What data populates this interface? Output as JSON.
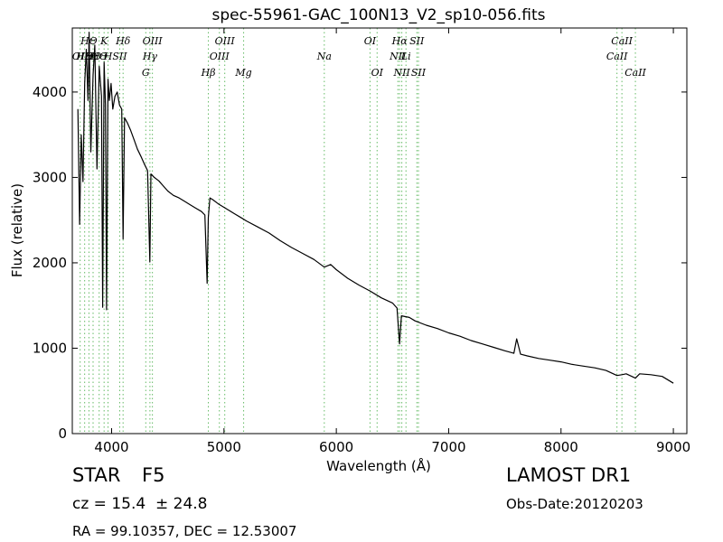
{
  "chart_data": {
    "type": "line",
    "title": "spec-55961-GAC_100N13_V2_sp10-056.fits",
    "xlabel": "Wavelength (Å)",
    "ylabel": "Flux (relative)",
    "xlim": [
      3650,
      9120
    ],
    "ylim": [
      0,
      4750
    ],
    "xticks": [
      4000,
      5000,
      6000,
      7000,
      8000,
      9000
    ],
    "yticks": [
      0,
      1000,
      2000,
      3000,
      4000
    ],
    "grid": false,
    "series": [
      {
        "color": "#000000",
        "x": [
          3700,
          3715,
          3730,
          3745,
          3760,
          3775,
          3790,
          3800,
          3815,
          3835,
          3850,
          3870,
          3890,
          3910,
          3920,
          3933,
          3945,
          3955,
          3968,
          3980,
          3995,
          4010,
          4030,
          4050,
          4070,
          4090,
          4102,
          4115,
          4140,
          4170,
          4200,
          4230,
          4260,
          4290,
          4320,
          4340,
          4350,
          4380,
          4420,
          4460,
          4500,
          4550,
          4600,
          4650,
          4700,
          4750,
          4800,
          4830,
          4850,
          4861,
          4875,
          4900,
          4950,
          5000,
          5050,
          5100,
          5150,
          5200,
          5300,
          5400,
          5500,
          5600,
          5700,
          5800,
          5893,
          5950,
          6000,
          6100,
          6200,
          6300,
          6400,
          6500,
          6540,
          6563,
          6580,
          6650,
          6700,
          6800,
          6900,
          7000,
          7100,
          7200,
          7300,
          7400,
          7500,
          7580,
          7605,
          7640,
          7700,
          7800,
          7900,
          8000,
          8100,
          8200,
          8300,
          8400,
          8498,
          8542,
          8580,
          8662,
          8700,
          8800,
          8900,
          9000
        ],
        "y": [
          3800,
          2450,
          3500,
          2950,
          4100,
          4500,
          3900,
          4700,
          3300,
          4200,
          4550,
          3100,
          4300,
          3950,
          1480,
          4350,
          3850,
          1450,
          4150,
          3900,
          4100,
          3800,
          3950,
          4000,
          3850,
          3800,
          2280,
          3700,
          3640,
          3550,
          3440,
          3330,
          3250,
          3160,
          3080,
          2010,
          3040,
          3000,
          2960,
          2900,
          2840,
          2790,
          2760,
          2720,
          2680,
          2640,
          2600,
          2560,
          1760,
          2530,
          2760,
          2740,
          2690,
          2650,
          2610,
          2570,
          2530,
          2490,
          2420,
          2350,
          2260,
          2180,
          2110,
          2040,
          1950,
          1980,
          1920,
          1820,
          1740,
          1670,
          1590,
          1530,
          1470,
          1050,
          1380,
          1360,
          1320,
          1270,
          1230,
          1180,
          1140,
          1090,
          1050,
          1010,
          970,
          940,
          1110,
          930,
          910,
          880,
          860,
          840,
          810,
          790,
          770,
          740,
          680,
          690,
          700,
          650,
          700,
          690,
          670,
          590
        ]
      }
    ],
    "line_labels": [
      {
        "x": 3720,
        "row": 1,
        "text": "OII"
      },
      {
        "x": 3760,
        "row": 1,
        "text": "HΘ"
      },
      {
        "x": 3798,
        "row": 0,
        "text": "HΘ"
      },
      {
        "x": 3835,
        "row": 1,
        "text": "HΘ"
      },
      {
        "x": 3889,
        "row": 1,
        "text": "HΘ"
      },
      {
        "x": 3933,
        "row": 0,
        "text": "K"
      },
      {
        "x": 3968,
        "row": 1,
        "text": "H"
      },
      {
        "x": 4072,
        "row": 1,
        "text": "SII"
      },
      {
        "x": 4102,
        "row": 0,
        "text": "Hδ"
      },
      {
        "x": 4304,
        "row": 2,
        "text": "G"
      },
      {
        "x": 4341,
        "row": 1,
        "text": "Hγ"
      },
      {
        "x": 4363,
        "row": 0,
        "text": "OIII"
      },
      {
        "x": 4861,
        "row": 2,
        "text": "Hβ"
      },
      {
        "x": 4959,
        "row": 1,
        "text": "OIII"
      },
      {
        "x": 5007,
        "row": 0,
        "text": "OIII"
      },
      {
        "x": 5175,
        "row": 2,
        "text": "Mg"
      },
      {
        "x": 5893,
        "row": 1,
        "text": "Na"
      },
      {
        "x": 6300,
        "row": 0,
        "text": "OI"
      },
      {
        "x": 6363,
        "row": 2,
        "text": "OI"
      },
      {
        "x": 6548,
        "row": 1,
        "text": "NII"
      },
      {
        "x": 6563,
        "row": 0,
        "text": "Hα"
      },
      {
        "x": 6583,
        "row": 2,
        "text": "NII"
      },
      {
        "x": 6620,
        "row": 1,
        "text": "Li"
      },
      {
        "x": 6717,
        "row": 0,
        "text": "SII"
      },
      {
        "x": 6731,
        "row": 2,
        "text": "SII"
      },
      {
        "x": 8498,
        "row": 1,
        "text": "CaII"
      },
      {
        "x": 8542,
        "row": 0,
        "text": "CaII"
      },
      {
        "x": 8662,
        "row": 2,
        "text": "CaII"
      }
    ]
  },
  "info": {
    "object_class": "STAR",
    "subclass": "F5",
    "redshift": "cz = 15.4  ± 24.8",
    "coords": "RA = 99.10357, DEC = 12.53007",
    "survey": "LAMOST DR1",
    "obs_date": "Obs-Date:20120203"
  },
  "style": {
    "line_marker_color": "#66bb66",
    "spectrum_color": "#000000"
  }
}
